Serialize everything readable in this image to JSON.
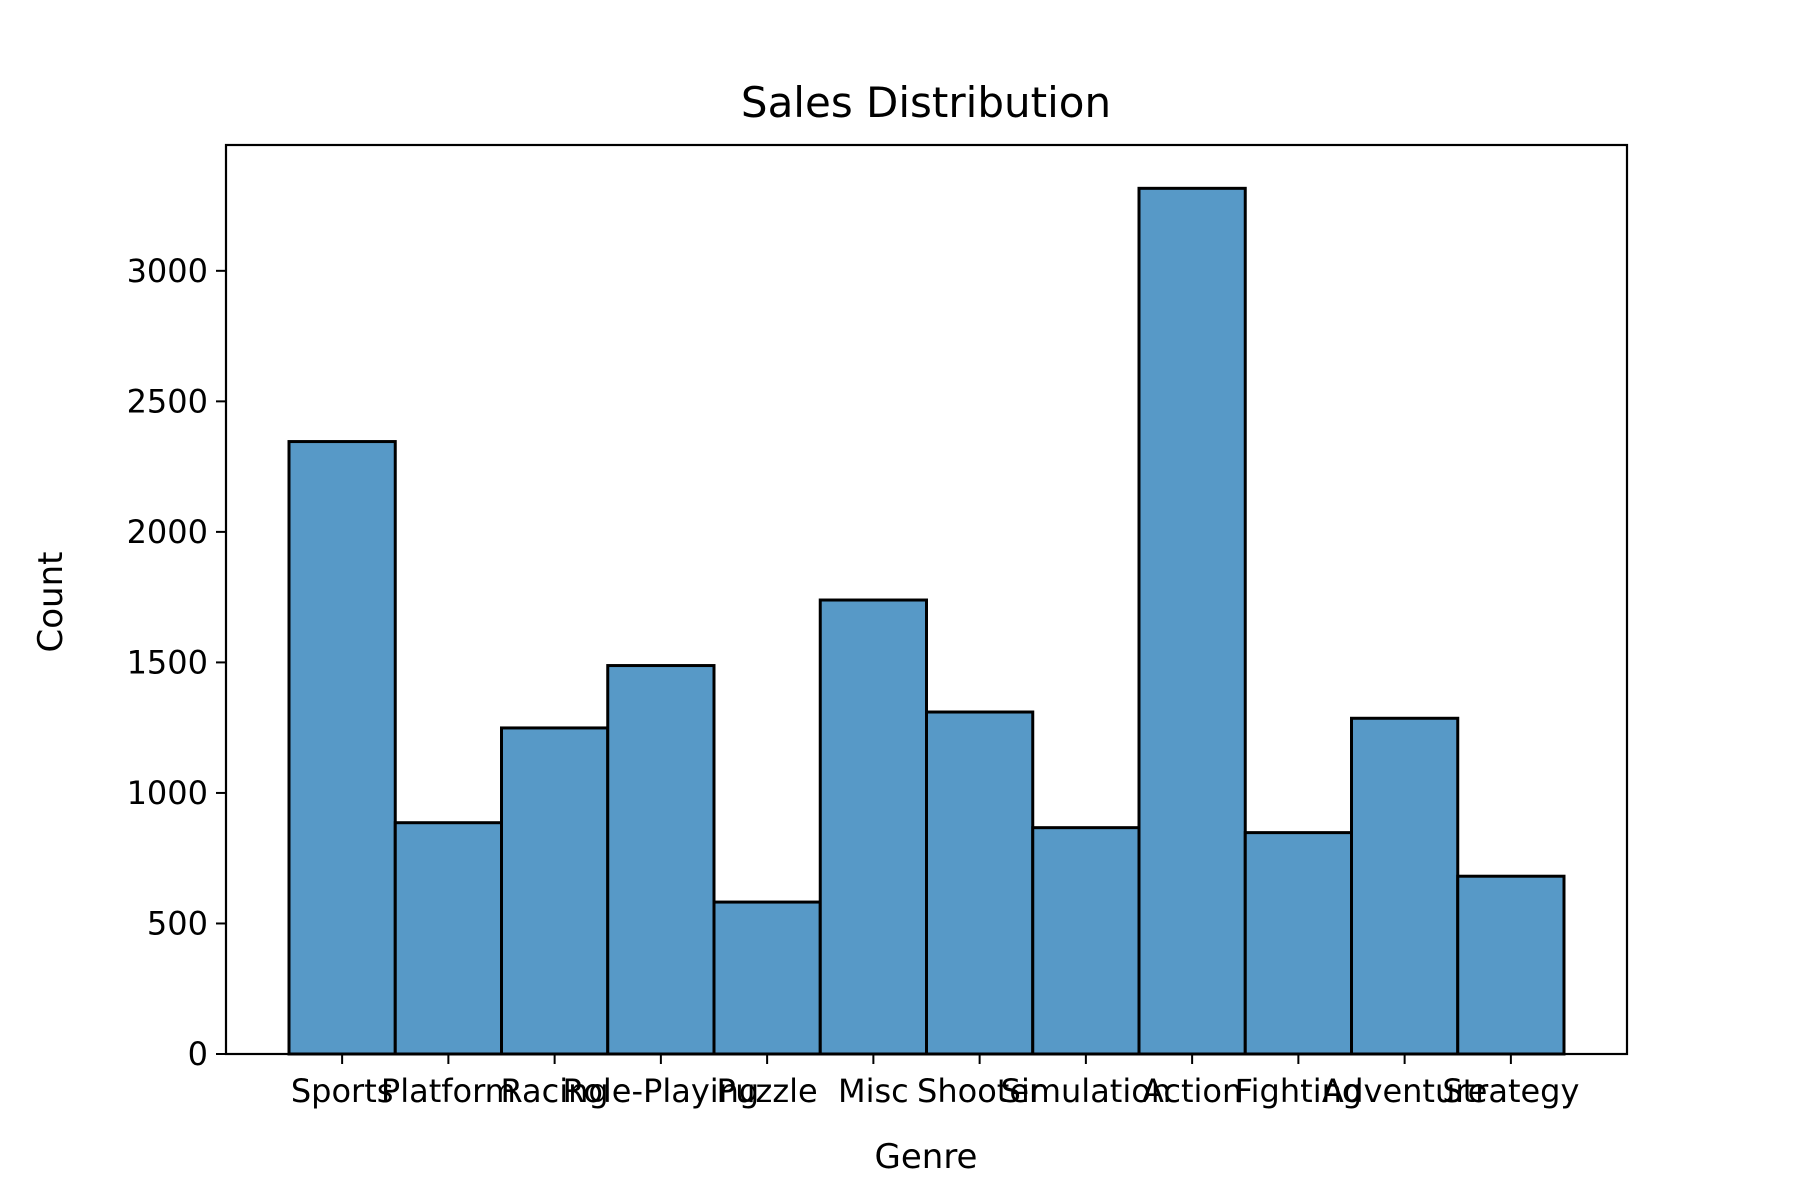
{
  "chart_data": {
    "type": "bar",
    "title": "Sales Distribution",
    "xlabel": "Genre",
    "ylabel": "Count",
    "categories": [
      "Sports",
      "Platform",
      "Racing",
      "Role-Playing",
      "Puzzle",
      "Misc",
      "Shooter",
      "Simulation",
      "Action",
      "Fighting",
      "Adventure",
      "Strategy"
    ],
    "values": [
      2346,
      886,
      1249,
      1488,
      582,
      1739,
      1310,
      867,
      3316,
      848,
      1286,
      681
    ],
    "yticks": [
      0,
      500,
      1000,
      1500,
      2000,
      2500,
      3000
    ],
    "ylim": [
      0,
      3482
    ],
    "grid": false,
    "bar_color": "#5799c7",
    "edge_color": "#000000"
  }
}
